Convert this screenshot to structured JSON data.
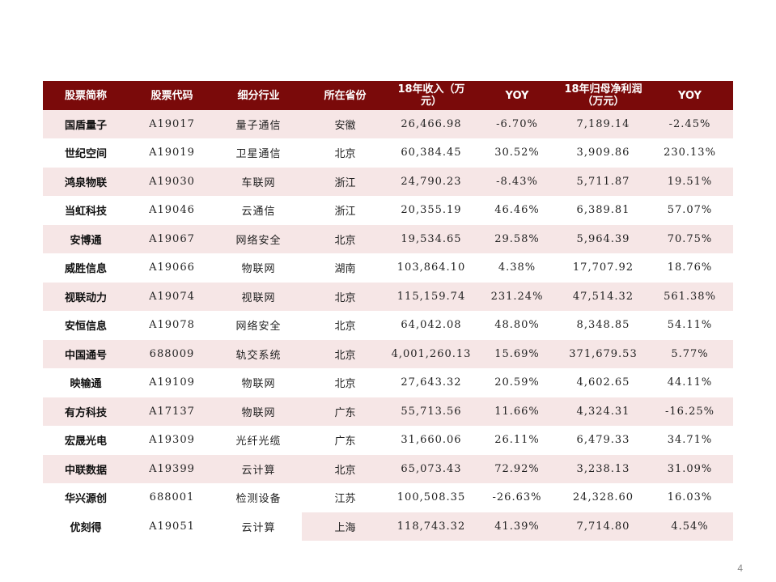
{
  "headers": [
    "股票简称",
    "股票代码",
    "细分行业",
    "所在省份",
    "18年收入（万元）",
    "YOY",
    "18年归母净利润（万元）",
    "YOY"
  ],
  "rows": [
    {
      "name": "国盾量子",
      "code": "A19017",
      "industry": "量子通信",
      "province": "安徽",
      "revenue": "26,466.98",
      "rev_yoy": "-6.70%",
      "profit": "7,189.14",
      "profit_yoy": "-2.45%"
    },
    {
      "name": "世纪空间",
      "code": "A19019",
      "industry": "卫星通信",
      "province": "北京",
      "revenue": "60,384.45",
      "rev_yoy": "30.52%",
      "profit": "3,909.86",
      "profit_yoy": "230.13%"
    },
    {
      "name": "鸿泉物联",
      "code": "A19030",
      "industry": "车联网",
      "province": "浙江",
      "revenue": "24,790.23",
      "rev_yoy": "-8.43%",
      "profit": "5,711.87",
      "profit_yoy": "19.51%"
    },
    {
      "name": "当虹科技",
      "code": "A19046",
      "industry": "云通信",
      "province": "浙江",
      "revenue": "20,355.19",
      "rev_yoy": "46.46%",
      "profit": "6,389.81",
      "profit_yoy": "57.07%"
    },
    {
      "name": "安博通",
      "code": "A19067",
      "industry": "网络安全",
      "province": "北京",
      "revenue": "19,534.65",
      "rev_yoy": "29.58%",
      "profit": "5,964.39",
      "profit_yoy": "70.75%"
    },
    {
      "name": "威胜信息",
      "code": "A19066",
      "industry": "物联网",
      "province": "湖南",
      "revenue": "103,864.10",
      "rev_yoy": "4.38%",
      "profit": "17,707.92",
      "profit_yoy": "18.76%"
    },
    {
      "name": "视联动力",
      "code": "A19074",
      "industry": "视联网",
      "province": "北京",
      "revenue": "115,159.74",
      "rev_yoy": "231.24%",
      "profit": "47,514.32",
      "profit_yoy": "561.38%"
    },
    {
      "name": "安恒信息",
      "code": "A19078",
      "industry": "网络安全",
      "province": "北京",
      "revenue": "64,042.08",
      "rev_yoy": "48.80%",
      "profit": "8,348.85",
      "profit_yoy": "54.11%"
    },
    {
      "name": "中国通号",
      "code": "688009",
      "industry": "轨交系统",
      "province": "北京",
      "revenue": "4,001,260.13",
      "rev_yoy": "15.69%",
      "profit": "371,679.53",
      "profit_yoy": "5.77%"
    },
    {
      "name": "映输通",
      "code": "A19109",
      "industry": "物联网",
      "province": "北京",
      "revenue": "27,643.32",
      "rev_yoy": "20.59%",
      "profit": "4,602.65",
      "profit_yoy": "44.11%"
    },
    {
      "name": "有方科技",
      "code": "A17137",
      "industry": "物联网",
      "province": "广东",
      "revenue": "55,713.56",
      "rev_yoy": "11.66%",
      "profit": "4,324.31",
      "profit_yoy": "-16.25%"
    },
    {
      "name": "宏晟光电",
      "code": "A19309",
      "industry": "光纤光缆",
      "province": "广东",
      "revenue": "31,660.06",
      "rev_yoy": "26.11%",
      "profit": "6,479.33",
      "profit_yoy": "34.71%"
    },
    {
      "name": "中联数据",
      "code": "A19399",
      "industry": "云计算",
      "province": "北京",
      "revenue": "65,073.43",
      "rev_yoy": "72.92%",
      "profit": "3,238.13",
      "profit_yoy": "31.09%"
    },
    {
      "name": "华兴源创",
      "code": "688001",
      "industry": "检测设备",
      "province": "江苏",
      "revenue": "100,508.35",
      "rev_yoy": "-26.63%",
      "profit": "24,328.60",
      "profit_yoy": "16.03%"
    },
    {
      "name": "优刻得",
      "code": "A19051",
      "industry": "云计算",
      "province": "上海",
      "revenue": "118,743.32",
      "rev_yoy": "41.39%",
      "profit": "7,714.80",
      "profit_yoy": "4.54%"
    }
  ],
  "page_number": "4",
  "colors": {
    "header_bg": "#7a0a0a",
    "row_shade": "#f6e6e6"
  }
}
